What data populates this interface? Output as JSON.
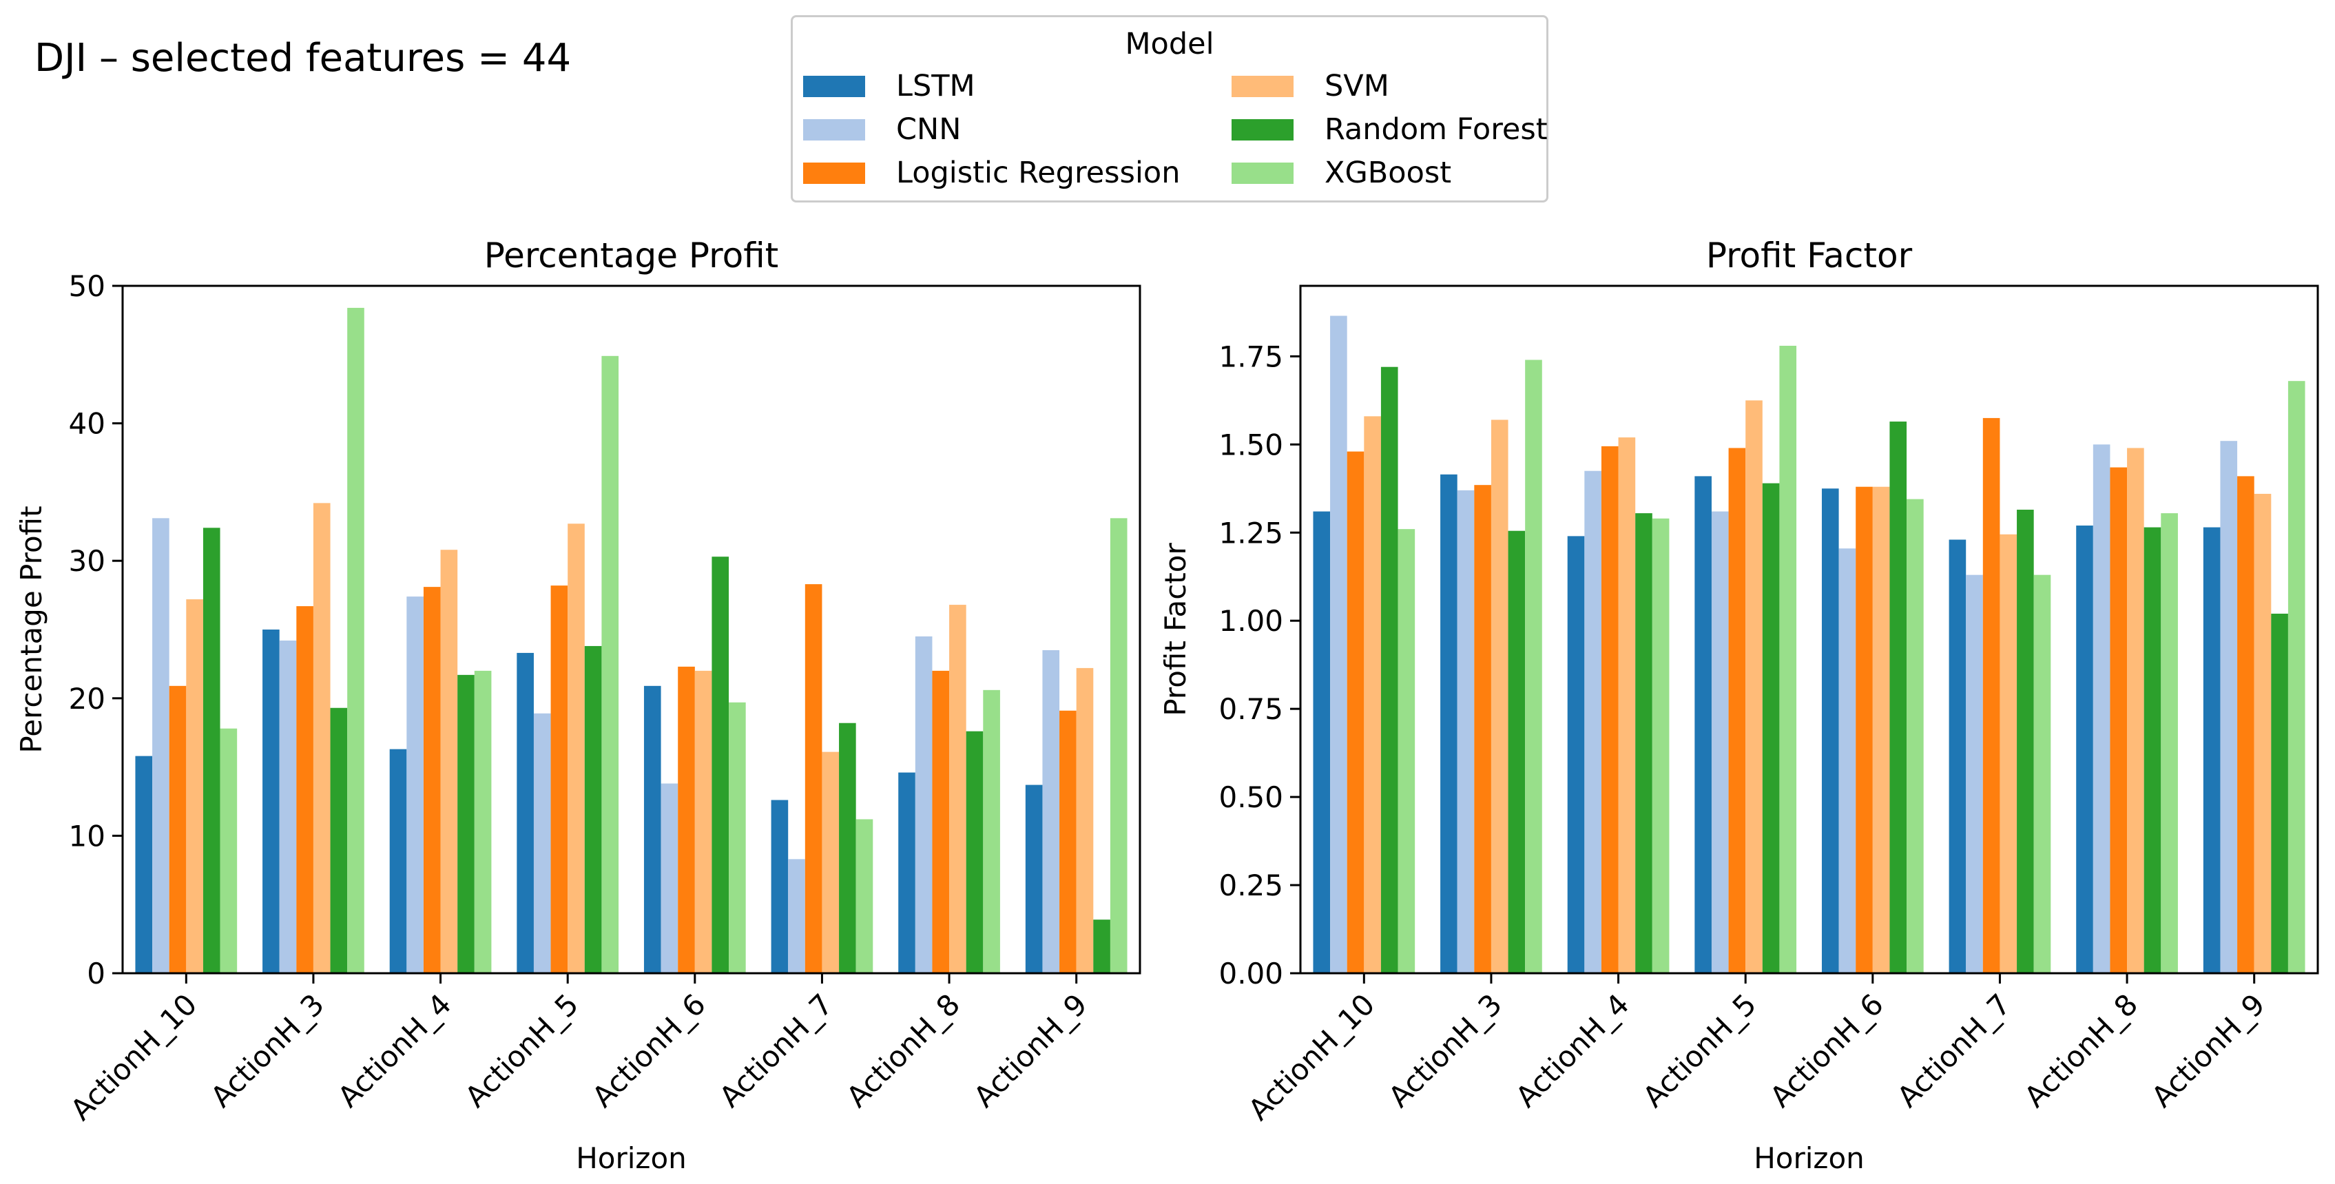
{
  "figure": {
    "suptitle": "DJI – selected features = 44",
    "legend": {
      "title": "Model",
      "items": [
        {
          "label": "LSTM",
          "color": "#1f77b4"
        },
        {
          "label": "CNN",
          "color": "#aec7e8"
        },
        {
          "label": "Logistic Regression",
          "color": "#ff7f0e"
        },
        {
          "label": "SVM",
          "color": "#ffbb78"
        },
        {
          "label": "Random Forest",
          "color": "#2ca02c"
        },
        {
          "label": "XGBoost",
          "color": "#98df8a"
        }
      ]
    }
  },
  "chart_data": [
    {
      "type": "bar",
      "title": "Percentage Profit",
      "xlabel": "Horizon",
      "ylabel": "Percentage Profit",
      "ylim": [
        0,
        50
      ],
      "yticks": [
        0,
        10,
        20,
        30,
        40,
        50
      ],
      "ytick_labels": [
        "0",
        "10",
        "20",
        "30",
        "40",
        "50"
      ],
      "categories": [
        "ActionH_10",
        "ActionH_3",
        "ActionH_4",
        "ActionH_5",
        "ActionH_6",
        "ActionH_7",
        "ActionH_8",
        "ActionH_9"
      ],
      "series": [
        {
          "name": "LSTM",
          "values": [
            15.8,
            25.0,
            16.3,
            23.3,
            20.9,
            12.6,
            14.6,
            13.7
          ]
        },
        {
          "name": "CNN",
          "values": [
            33.1,
            24.2,
            27.4,
            18.9,
            13.8,
            8.3,
            24.5,
            23.5
          ]
        },
        {
          "name": "Logistic Regression",
          "values": [
            20.9,
            26.7,
            28.1,
            28.2,
            22.3,
            28.3,
            22.0,
            19.1
          ]
        },
        {
          "name": "SVM",
          "values": [
            27.2,
            34.2,
            30.8,
            32.7,
            22.0,
            16.1,
            26.8,
            22.2
          ]
        },
        {
          "name": "Random Forest",
          "values": [
            32.4,
            19.3,
            21.7,
            23.8,
            30.3,
            18.2,
            17.6,
            3.9
          ]
        },
        {
          "name": "XGBoost",
          "values": [
            17.8,
            48.4,
            22.0,
            44.9,
            19.7,
            11.2,
            20.6,
            33.1
          ]
        }
      ]
    },
    {
      "type": "bar",
      "title": "Profit Factor",
      "xlabel": "Horizon",
      "ylabel": "Profit Factor",
      "ylim": [
        0,
        1.95
      ],
      "yticks": [
        0,
        0.25,
        0.5,
        0.75,
        1.0,
        1.25,
        1.5,
        1.75
      ],
      "ytick_labels": [
        "0.00",
        "0.25",
        "0.50",
        "0.75",
        "1.00",
        "1.25",
        "1.50",
        "1.75"
      ],
      "categories": [
        "ActionH_10",
        "ActionH_3",
        "ActionH_4",
        "ActionH_5",
        "ActionH_6",
        "ActionH_7",
        "ActionH_8",
        "ActionH_9"
      ],
      "series": [
        {
          "name": "LSTM",
          "values": [
            1.31,
            1.415,
            1.24,
            1.41,
            1.375,
            1.23,
            1.27,
            1.265
          ]
        },
        {
          "name": "CNN",
          "values": [
            1.865,
            1.37,
            1.425,
            1.31,
            1.205,
            1.13,
            1.5,
            1.51
          ]
        },
        {
          "name": "Logistic Regression",
          "values": [
            1.48,
            1.385,
            1.495,
            1.49,
            1.38,
            1.575,
            1.435,
            1.41
          ]
        },
        {
          "name": "SVM",
          "values": [
            1.58,
            1.57,
            1.52,
            1.625,
            1.38,
            1.245,
            1.49,
            1.36
          ]
        },
        {
          "name": "Random Forest",
          "values": [
            1.72,
            1.255,
            1.305,
            1.39,
            1.565,
            1.315,
            1.265,
            1.02
          ]
        },
        {
          "name": "XGBoost",
          "values": [
            1.26,
            1.74,
            1.29,
            1.78,
            1.345,
            1.13,
            1.305,
            1.68
          ]
        }
      ]
    }
  ]
}
